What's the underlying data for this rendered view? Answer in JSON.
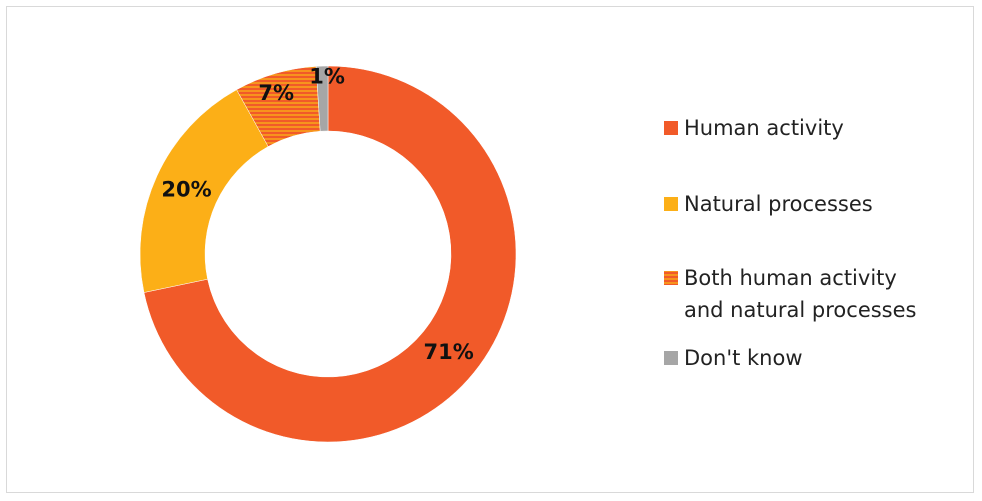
{
  "chart_data": {
    "type": "pie",
    "subtype": "donut",
    "title": "",
    "categories": [
      "Human activity",
      "Natural processes",
      "Both human activity and natural processes",
      "Don't know"
    ],
    "values": [
      71,
      20,
      7,
      1
    ],
    "value_labels": [
      "71%",
      "20%",
      "7%",
      "1%"
    ],
    "colors": [
      "#f15a29",
      "#fcaf17",
      "#f7941d",
      "#a6a6a6"
    ],
    "patterns": [
      "solid",
      "solid",
      "horizontal-stripes",
      "solid"
    ],
    "legend": {
      "position": "right",
      "entries": [
        {
          "lines": [
            "Human activity"
          ]
        },
        {
          "lines": [
            "Natural processes"
          ]
        },
        {
          "lines": [
            "Both human activity",
            "and natural processes"
          ]
        },
        {
          "lines": [
            "Don't know"
          ]
        }
      ]
    }
  }
}
